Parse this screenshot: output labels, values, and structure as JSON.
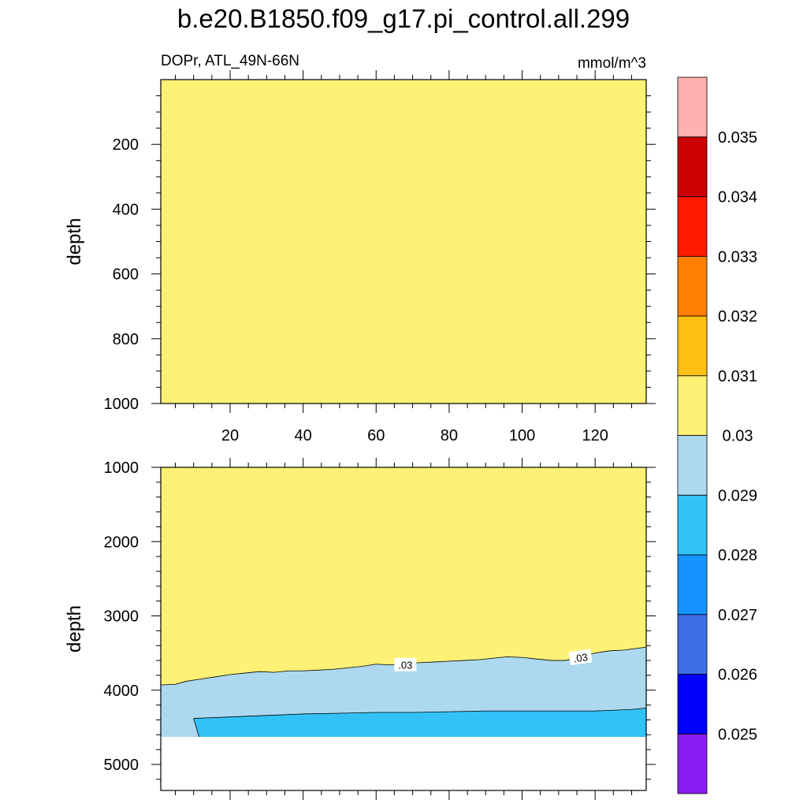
{
  "chart_data": {
    "type": "contour",
    "title": "b.e20.B1850.f09_g17.pi_control.all.299",
    "left_subtitle": "DOPr, ATL_49N-66N",
    "right_subtitle": "mmol/m^3",
    "x_tick_labels": [
      "20",
      "40",
      "60",
      "80",
      "100",
      "120"
    ],
    "x_range": [
      1,
      134
    ],
    "panels": [
      {
        "name": "upper",
        "ylabel": "depth",
        "ylim": [
          0,
          1000
        ],
        "y_tick_labels": [
          "200",
          "400",
          "600",
          "800",
          "1000"
        ],
        "y_reversed": true,
        "filled_level_color": "#fff176",
        "description_fill": "all values between 0.03 and 0.031"
      },
      {
        "name": "lower",
        "ylabel": "depth",
        "ylim": [
          1000,
          5350
        ],
        "y_tick_labels": [
          "1000",
          "2000",
          "3000",
          "4000",
          "5000"
        ],
        "y_reversed": true,
        "bottom_depth": 4630,
        "contour_030_depth": {
          "x": [
            1,
            5,
            8,
            12,
            16,
            20,
            24,
            28,
            32,
            36,
            40,
            44,
            48,
            52,
            56,
            60,
            64,
            68,
            72,
            76,
            80,
            84,
            88,
            92,
            96,
            100,
            104,
            108,
            112,
            116,
            120,
            124,
            128,
            131,
            134
          ],
          "depth": [
            3930,
            3920,
            3880,
            3850,
            3820,
            3790,
            3770,
            3750,
            3760,
            3740,
            3740,
            3730,
            3720,
            3700,
            3680,
            3650,
            3660,
            3640,
            3630,
            3620,
            3610,
            3600,
            3590,
            3570,
            3550,
            3560,
            3580,
            3600,
            3600,
            3550,
            3500,
            3470,
            3460,
            3440,
            3420
          ]
        },
        "contour_029_depth": {
          "x": [
            10,
            20,
            30,
            40,
            50,
            60,
            70,
            80,
            90,
            100,
            110,
            120,
            130,
            134
          ],
          "depth": [
            4380,
            4360,
            4340,
            4320,
            4310,
            4300,
            4300,
            4290,
            4280,
            4280,
            4280,
            4280,
            4260,
            4240
          ]
        },
        "contour_labels": [
          {
            "text": ".03",
            "x": 68,
            "depth": 3660
          },
          {
            "text": ".03",
            "x": 116,
            "depth": 3560
          }
        ]
      }
    ],
    "colorbar": {
      "colors": [
        "#8a1cf2",
        "#0000ff",
        "#3e6ee6",
        "#1594ff",
        "#33c2f8",
        "#add9f0",
        "#fff176",
        "#ffbf14",
        "#ff7f00",
        "#ff1a00",
        "#cc0000",
        "#ffb0b0"
      ],
      "labels": [
        "0.025",
        "0.026",
        "0.027",
        "0.028",
        "0.029",
        "0.03",
        "0.031",
        "0.032",
        "0.033",
        "0.034",
        "0.035"
      ]
    }
  }
}
